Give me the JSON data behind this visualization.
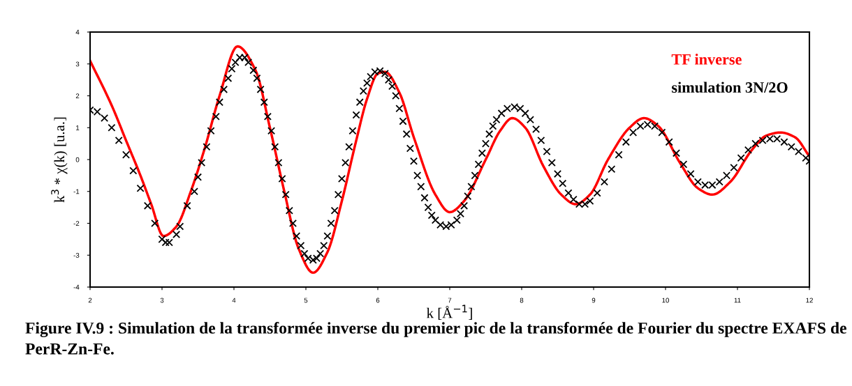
{
  "chart_data": {
    "type": "line",
    "xlabel": "k [Å$^{−1}$]",
    "ylabel": "k$^{3}$ * χ(k) [u.a.]",
    "xlim": [
      2,
      12
    ],
    "xticks": [
      2,
      3,
      4,
      5,
      6,
      7,
      8,
      9,
      10,
      11,
      12
    ],
    "ylim": [
      -4,
      4
    ],
    "yticks": [
      -4,
      -3,
      -2,
      -1,
      0,
      1,
      2,
      3,
      4
    ],
    "grid": false,
    "legend": "top right",
    "annotations": [
      "Figure IV.9 : Simulation de la transformée inverse du premier pic de la transformée de Fourier du spectre EXAFS de PerR-Zn-Fe."
    ],
    "series": [
      {
        "name": "TF inverse",
        "color": "#ff0000",
        "marker": "none",
        "line_style": "solid",
        "x": [
          2.0,
          2.3,
          2.5,
          2.7,
          2.85,
          3.02,
          3.2,
          3.4,
          3.6,
          3.8,
          4.05,
          4.3,
          4.5,
          4.7,
          4.9,
          5.1,
          5.3,
          5.5,
          5.7,
          5.85,
          6.0,
          6.1,
          6.3,
          6.5,
          6.8,
          7.0,
          7.2,
          7.5,
          7.7,
          7.87,
          8.05,
          8.3,
          8.55,
          8.75,
          8.95,
          9.2,
          9.5,
          9.7,
          9.9,
          10.2,
          10.45,
          10.65,
          10.9,
          11.2,
          11.4,
          11.6,
          11.8,
          12.0
        ],
        "values": [
          3.1,
          1.7,
          0.6,
          -0.5,
          -1.4,
          -2.4,
          -2.1,
          -1.0,
          0.4,
          2.0,
          3.55,
          2.8,
          1.0,
          -1.0,
          -2.8,
          -3.55,
          -2.9,
          -1.3,
          0.6,
          1.9,
          2.7,
          2.75,
          2.1,
          0.7,
          -1.1,
          -1.65,
          -1.3,
          0.0,
          0.9,
          1.3,
          1.0,
          -0.2,
          -1.1,
          -1.4,
          -1.1,
          0.0,
          1.0,
          1.3,
          1.05,
          -0.1,
          -0.9,
          -1.1,
          -0.7,
          0.3,
          0.75,
          0.85,
          0.7,
          0.1
        ]
      },
      {
        "name": "simulation 3N/2O",
        "color": "#000000",
        "type": "scatter",
        "marker": "cross",
        "x": [
          2.0,
          2.1,
          2.2,
          2.3,
          2.4,
          2.5,
          2.6,
          2.7,
          2.8,
          2.9,
          3.0,
          3.05,
          3.1,
          3.2,
          3.25,
          3.35,
          3.45,
          3.5,
          3.55,
          3.62,
          3.68,
          3.75,
          3.8,
          3.86,
          3.92,
          3.97,
          4.02,
          4.08,
          4.15,
          4.2,
          4.27,
          4.32,
          4.37,
          4.42,
          4.47,
          4.52,
          4.57,
          4.62,
          4.67,
          4.72,
          4.77,
          4.82,
          4.87,
          4.93,
          4.98,
          5.03,
          5.1,
          5.15,
          5.2,
          5.25,
          5.3,
          5.35,
          5.4,
          5.45,
          5.5,
          5.55,
          5.6,
          5.65,
          5.7,
          5.75,
          5.8,
          5.85,
          5.9,
          5.96,
          6.03,
          6.1,
          6.15,
          6.2,
          6.25,
          6.3,
          6.35,
          6.4,
          6.45,
          6.5,
          6.55,
          6.6,
          6.65,
          6.7,
          6.75,
          6.8,
          6.87,
          6.95,
          7.02,
          7.1,
          7.15,
          7.2,
          7.25,
          7.3,
          7.35,
          7.4,
          7.45,
          7.5,
          7.55,
          7.6,
          7.65,
          7.72,
          7.8,
          7.9,
          7.98,
          8.05,
          8.12,
          8.2,
          8.27,
          8.35,
          8.42,
          8.5,
          8.57,
          8.65,
          8.72,
          8.8,
          8.88,
          8.95,
          9.05,
          9.15,
          9.25,
          9.35,
          9.45,
          9.55,
          9.65,
          9.75,
          9.85,
          9.95,
          10.05,
          10.15,
          10.25,
          10.35,
          10.45,
          10.55,
          10.65,
          10.75,
          10.85,
          10.95,
          11.05,
          11.15,
          11.25,
          11.35,
          11.45,
          11.55,
          11.65,
          11.75,
          11.85,
          11.95,
          12.0
        ],
        "values": [
          1.55,
          1.5,
          1.3,
          1.0,
          0.6,
          0.15,
          -0.35,
          -0.9,
          -1.45,
          -2.0,
          -2.5,
          -2.6,
          -2.6,
          -2.35,
          -2.1,
          -1.45,
          -1.0,
          -0.55,
          -0.1,
          0.4,
          0.9,
          1.35,
          1.8,
          2.2,
          2.55,
          2.85,
          3.05,
          3.2,
          3.2,
          3.05,
          2.8,
          2.55,
          2.2,
          1.8,
          1.35,
          0.9,
          0.4,
          -0.1,
          -0.6,
          -1.1,
          -1.6,
          -2.0,
          -2.4,
          -2.7,
          -2.95,
          -3.1,
          -3.15,
          -3.1,
          -2.95,
          -2.7,
          -2.4,
          -2.0,
          -1.6,
          -1.1,
          -0.6,
          -0.1,
          0.4,
          0.9,
          1.4,
          1.8,
          2.15,
          2.4,
          2.6,
          2.75,
          2.78,
          2.7,
          2.5,
          2.3,
          2.0,
          1.6,
          1.2,
          0.8,
          0.35,
          -0.05,
          -0.5,
          -0.85,
          -1.2,
          -1.5,
          -1.75,
          -1.9,
          -2.05,
          -2.1,
          -2.05,
          -1.9,
          -1.7,
          -1.45,
          -1.15,
          -0.85,
          -0.5,
          -0.15,
          0.2,
          0.5,
          0.8,
          1.05,
          1.25,
          1.45,
          1.6,
          1.65,
          1.6,
          1.45,
          1.25,
          0.95,
          0.6,
          0.25,
          -0.1,
          -0.45,
          -0.75,
          -1.05,
          -1.25,
          -1.4,
          -1.4,
          -1.3,
          -1.05,
          -0.7,
          -0.3,
          0.15,
          0.55,
          0.85,
          1.05,
          1.1,
          1.05,
          0.85,
          0.55,
          0.2,
          -0.15,
          -0.45,
          -0.7,
          -0.8,
          -0.8,
          -0.7,
          -0.5,
          -0.25,
          0.05,
          0.3,
          0.5,
          0.6,
          0.65,
          0.65,
          0.55,
          0.4,
          0.25,
          0.05,
          -0.05
        ]
      }
    ]
  }
}
